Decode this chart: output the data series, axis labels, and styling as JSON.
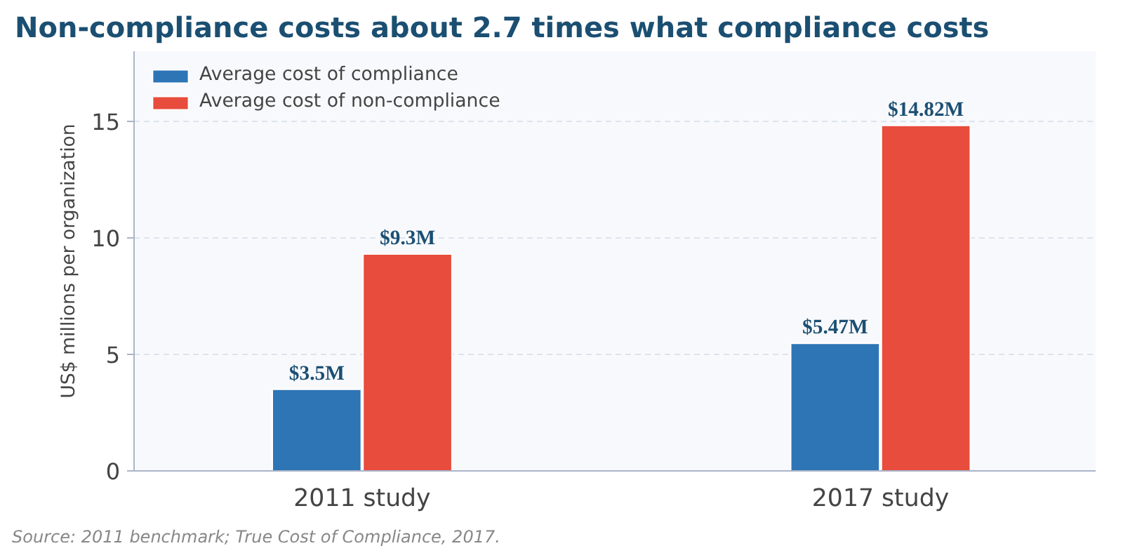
{
  "chart_data": {
    "type": "bar",
    "title": "Non-compliance costs about 2.7 times what compliance costs",
    "ylabel": "US$ millions per organization",
    "categories": [
      "2011 study",
      "2017 study"
    ],
    "series": [
      {
        "name": "Average cost of compliance",
        "color": "#2e75b6",
        "values": [
          3.5,
          5.47
        ],
        "value_labels": [
          "$3.5M",
          "$5.47M"
        ]
      },
      {
        "name": "Average cost of non-compliance",
        "color": "#e74c3c",
        "values": [
          9.3,
          14.82
        ],
        "value_labels": [
          "$9.3M",
          "$14.82M"
        ]
      }
    ],
    "ylim": [
      0,
      18
    ],
    "yticks": [
      0,
      5,
      10,
      15
    ],
    "grid": "y",
    "legend": "top left",
    "annotations": [
      "Source: 2011 benchmark; True Cost of Compliance, 2017."
    ]
  }
}
